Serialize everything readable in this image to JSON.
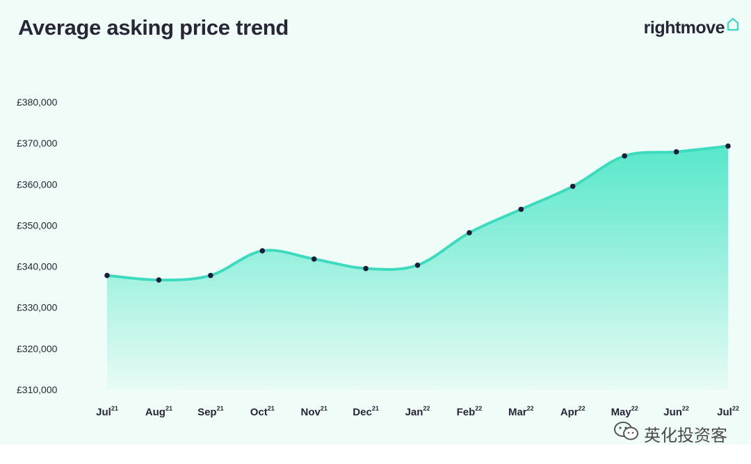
{
  "header": {
    "title": "Average asking price trend",
    "brand": "rightmove",
    "brand_icon": "house-outline-icon"
  },
  "watermark": {
    "icon": "wechat-icon",
    "text": "英化投资客"
  },
  "colors": {
    "line": "#3ddbbd",
    "fill_top": "#4fe6c8",
    "background": "#effcf7",
    "point": "#1d1d3a",
    "text": "#262637"
  },
  "chart_data": {
    "type": "area",
    "title": "Average asking price trend",
    "xlabel": "",
    "ylabel": "",
    "categories": [
      "Jul",
      "Aug",
      "Sep",
      "Oct",
      "Nov",
      "Dec",
      "Jan",
      "Feb",
      "Mar",
      "Apr",
      "May",
      "Jun",
      "Jul"
    ],
    "category_superscripts": [
      "21",
      "21",
      "21",
      "21",
      "21",
      "21",
      "22",
      "22",
      "22",
      "22",
      "22",
      "22",
      "22"
    ],
    "values": [
      337800,
      336700,
      337800,
      343800,
      341800,
      339500,
      340300,
      348200,
      353900,
      359500,
      366900,
      367900,
      369300
    ],
    "ylim": [
      310000,
      380000
    ],
    "yticks": [
      310000,
      320000,
      330000,
      340000,
      350000,
      360000,
      370000,
      380000
    ],
    "ytick_labels": [
      "£310,000",
      "£320,000",
      "£330,000",
      "£340,000",
      "£350,000",
      "£360,000",
      "£370,000",
      "£380,000"
    ],
    "grid": false,
    "legend": "none"
  }
}
